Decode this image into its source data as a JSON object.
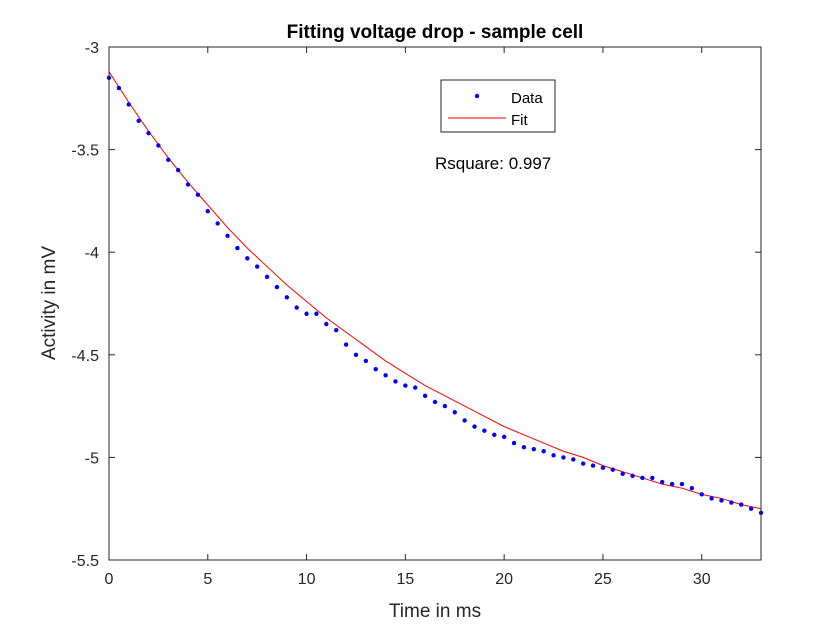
{
  "chart_data": {
    "type": "scatter",
    "title": "Fitting voltage drop - sample cell",
    "xlabel": "Time in ms",
    "ylabel": "Activity in mV",
    "xlim": [
      0,
      33
    ],
    "ylim": [
      -5.5,
      -3
    ],
    "xticks": [
      0,
      5,
      10,
      15,
      20,
      25,
      30
    ],
    "xtick_labels": [
      "0",
      "5",
      "10",
      "15",
      "20",
      "25",
      "30"
    ],
    "yticks": [
      -3,
      -3.5,
      -4,
      -4.5,
      -5,
      -5.5
    ],
    "ytick_labels": [
      "-3",
      "-3.5",
      "-4",
      "-4.5",
      "-5",
      "-5.5"
    ],
    "grid": false,
    "legend_position": "top-center",
    "annotation": "Rsquare: 0.997",
    "colors": {
      "data": "#0000ff",
      "fit": "#ff0000",
      "axes": "#262626"
    },
    "series": [
      {
        "name": "Data",
        "marker": "dot",
        "x": [
          0.0,
          0.5,
          1.0,
          1.5,
          2.0,
          2.5,
          3.0,
          3.5,
          4.0,
          4.5,
          5.0,
          5.5,
          6.0,
          6.5,
          7.0,
          7.5,
          8.0,
          8.5,
          9.0,
          9.5,
          10.0,
          10.5,
          11.0,
          11.5,
          12.0,
          12.5,
          13.0,
          13.5,
          14.0,
          14.5,
          15.0,
          15.5,
          16.0,
          16.5,
          17.0,
          17.5,
          18.0,
          18.5,
          19.0,
          19.5,
          20.0,
          20.5,
          21.0,
          21.5,
          22.0,
          22.5,
          23.0,
          23.5,
          24.0,
          24.5,
          25.0,
          25.5,
          26.0,
          26.5,
          27.0,
          27.5,
          28.0,
          28.5,
          29.0,
          29.5,
          30.0,
          30.5,
          31.0,
          31.5,
          32.0,
          32.5,
          33.0
        ],
        "y": [
          -3.15,
          -3.2,
          -3.28,
          -3.36,
          -3.42,
          -3.48,
          -3.55,
          -3.6,
          -3.67,
          -3.72,
          -3.8,
          -3.86,
          -3.92,
          -3.98,
          -4.03,
          -4.07,
          -4.12,
          -4.17,
          -4.22,
          -4.27,
          -4.3,
          -4.3,
          -4.35,
          -4.38,
          -4.45,
          -4.5,
          -4.53,
          -4.57,
          -4.6,
          -4.63,
          -4.65,
          -4.66,
          -4.7,
          -4.73,
          -4.75,
          -4.78,
          -4.82,
          -4.85,
          -4.87,
          -4.89,
          -4.9,
          -4.93,
          -4.95,
          -4.96,
          -4.97,
          -4.99,
          -5.0,
          -5.01,
          -5.03,
          -5.04,
          -5.05,
          -5.06,
          -5.08,
          -5.09,
          -5.1,
          -5.1,
          -5.12,
          -5.13,
          -5.13,
          -5.15,
          -5.18,
          -5.2,
          -5.21,
          -5.22,
          -5.23,
          -5.25,
          -5.27
        ]
      },
      {
        "name": "Fit",
        "marker": "line",
        "x": [
          0,
          1,
          2,
          3,
          4,
          5,
          6,
          7,
          8,
          9,
          10,
          11,
          12,
          13,
          14,
          15,
          16,
          17,
          18,
          19,
          20,
          21,
          22,
          23,
          24,
          25,
          26,
          27,
          28,
          29,
          30,
          31,
          32,
          33
        ],
        "y": [
          -3.12,
          -3.27,
          -3.41,
          -3.54,
          -3.66,
          -3.77,
          -3.88,
          -3.98,
          -4.07,
          -4.16,
          -4.24,
          -4.32,
          -4.39,
          -4.46,
          -4.53,
          -4.59,
          -4.65,
          -4.7,
          -4.75,
          -4.8,
          -4.85,
          -4.89,
          -4.93,
          -4.97,
          -5.0,
          -5.04,
          -5.07,
          -5.1,
          -5.13,
          -5.15,
          -5.18,
          -5.2,
          -5.23,
          -5.25
        ]
      }
    ]
  }
}
